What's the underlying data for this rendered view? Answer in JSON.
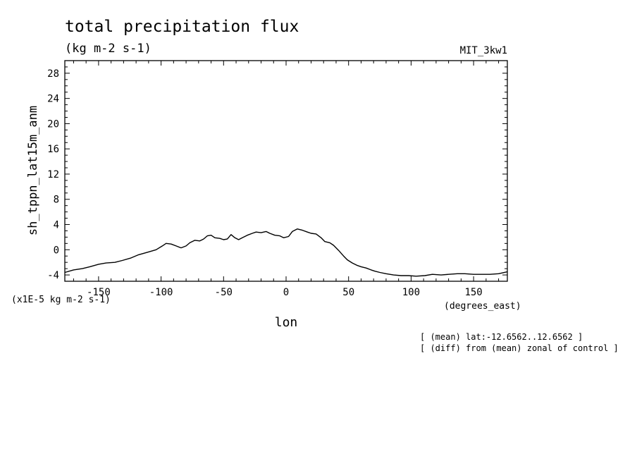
{
  "chart_data": {
    "type": "line",
    "title": "total precipitation flux",
    "subtitle": "(kg m-2 s-1)",
    "dataset_label": "MIT_3kw1",
    "ylabel": "sh_tppn_lat15m_anm",
    "yunits": "(x1E-5 kg m-2 s-1)",
    "xlabel": "lon",
    "xunits": "(degrees_east)",
    "notes": [
      "[ (mean) lat:-12.6562..12.6562 ]",
      "[ (diff) from (mean) zonal of control ]"
    ],
    "xlim": [
      -177,
      177
    ],
    "ylim": [
      -5,
      30
    ],
    "xticks": [
      -150,
      -100,
      -50,
      0,
      50,
      100,
      150
    ],
    "xtick_labels": [
      "-150",
      "-100",
      "-50",
      "0",
      "50",
      "100",
      "150"
    ],
    "yticks": [
      -4,
      0,
      4,
      8,
      12,
      16,
      20,
      24,
      28
    ],
    "ytick_labels": [
      "-4",
      "0",
      "4",
      "8",
      "12",
      "16",
      "20",
      "24",
      "28"
    ],
    "grid": false,
    "series": [
      {
        "x": [
          -177,
          -170,
          -163,
          -157,
          -150,
          -144,
          -137,
          -131,
          -124,
          -118,
          -111,
          -104,
          -99,
          -96,
          -92,
          -88,
          -84,
          -80,
          -77,
          -73,
          -69,
          -66,
          -63,
          -60,
          -57,
          -53,
          -50,
          -47,
          -44,
          -41,
          -38,
          -35,
          -31,
          -27,
          -24,
          -20,
          -16,
          -13,
          -9,
          -5,
          -2,
          2,
          5,
          9,
          13,
          17,
          20,
          24,
          28,
          31,
          35,
          38,
          42,
          46,
          49,
          53,
          57,
          60,
          64,
          68,
          71,
          75,
          80,
          86,
          92,
          98,
          104,
          111,
          117,
          124,
          130,
          137,
          143,
          150,
          156,
          163,
          170,
          177
        ],
        "y": [
          -3.6,
          -3.2,
          -3.0,
          -2.7,
          -2.3,
          -2.1,
          -2.0,
          -1.7,
          -1.3,
          -0.8,
          -0.4,
          0.0,
          0.6,
          1.0,
          0.9,
          0.6,
          0.3,
          0.6,
          1.1,
          1.5,
          1.4,
          1.7,
          2.2,
          2.3,
          1.9,
          1.8,
          1.6,
          1.7,
          2.4,
          1.9,
          1.6,
          1.9,
          2.3,
          2.6,
          2.8,
          2.7,
          2.9,
          2.6,
          2.3,
          2.2,
          1.9,
          2.1,
          2.9,
          3.3,
          3.1,
          2.8,
          2.6,
          2.5,
          1.9,
          1.3,
          1.1,
          0.7,
          -0.1,
          -1.0,
          -1.6,
          -2.1,
          -2.5,
          -2.7,
          -2.9,
          -3.2,
          -3.4,
          -3.6,
          -3.8,
          -4.0,
          -4.1,
          -4.1,
          -4.2,
          -4.1,
          -3.9,
          -4.0,
          -3.9,
          -3.8,
          -3.8,
          -3.9,
          -3.9,
          -3.9,
          -3.8,
          -3.5
        ]
      }
    ]
  }
}
